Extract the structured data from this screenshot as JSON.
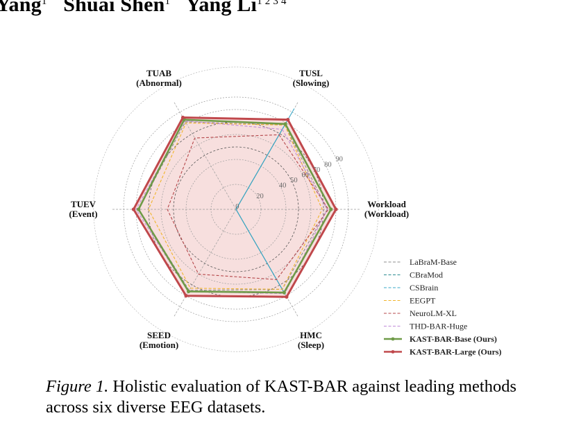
{
  "header": {
    "authors": [
      {
        "name": "Yang",
        "sup": "1"
      },
      {
        "name": "Shuai Shen",
        "sup": "1"
      },
      {
        "name": "Yang Li",
        "sup": "1 2 3 4"
      }
    ]
  },
  "caption": {
    "figure_label": "Figure 1.",
    "text": "Holistic evaluation of KAST-BAR against leading methods across six diverse EEG datasets."
  },
  "chart_data": {
    "type": "radar",
    "axes": [
      {
        "name": "TUSL",
        "sub": "(Slowing)"
      },
      {
        "name": "Workload",
        "sub": "(Workload)"
      },
      {
        "name": "HMC",
        "sub": "(Sleep)"
      },
      {
        "name": "SEED",
        "sub": "(Emotion)"
      },
      {
        "name": "TUEV",
        "sub": "(Event)"
      },
      {
        "name": "TUAB",
        "sub": "(Abnormal)"
      }
    ],
    "radial_ticks": [
      "0",
      "20",
      "40",
      "50",
      "60",
      "70",
      "80",
      "90"
    ],
    "tick_values": [
      0,
      20,
      40,
      50,
      60,
      70,
      80,
      90
    ],
    "grid": true,
    "legend_position": "bottom-right",
    "series": [
      {
        "name": "LaBraM-Base",
        "color": "#8c8c8c",
        "style": "dashed",
        "values": [
          78,
          73,
          74,
          75,
          78,
          81
        ]
      },
      {
        "name": "CBraMod",
        "color": "#2a8a8f",
        "style": "dashed",
        "values": [
          81,
          0,
          78,
          0,
          0,
          0
        ]
      },
      {
        "name": "CSBrain",
        "color": "#3aa8c8",
        "style": "dashed",
        "values": [
          93,
          0,
          79,
          0,
          0,
          0
        ]
      },
      {
        "name": "EEGPT",
        "color": "#f0b429",
        "style": "dashed",
        "values": [
          78,
          69,
          74,
          73,
          70,
          80
        ]
      },
      {
        "name": "NeuroLM-XL",
        "color": "#b5474a",
        "style": "dashed",
        "values": [
          69,
          74,
          65,
          60,
          55,
          66
        ]
      },
      {
        "name": "THD-BAR-Huge",
        "color": "#c08ad8",
        "style": "dashed",
        "values": [
          74,
          73,
          78,
          76,
          80,
          82
        ]
      },
      {
        "name": "KAST-BAR-Base (Ours)",
        "color": "#6e9a47",
        "style": "solid",
        "values": [
          79,
          76,
          77,
          76,
          78,
          83
        ]
      },
      {
        "name": "KAST-BAR-Large (Ours)",
        "color": "#c0484c",
        "style": "solid",
        "values": [
          83,
          80,
          81,
          80,
          82,
          85
        ],
        "fill": "#f4d4d3"
      }
    ]
  }
}
